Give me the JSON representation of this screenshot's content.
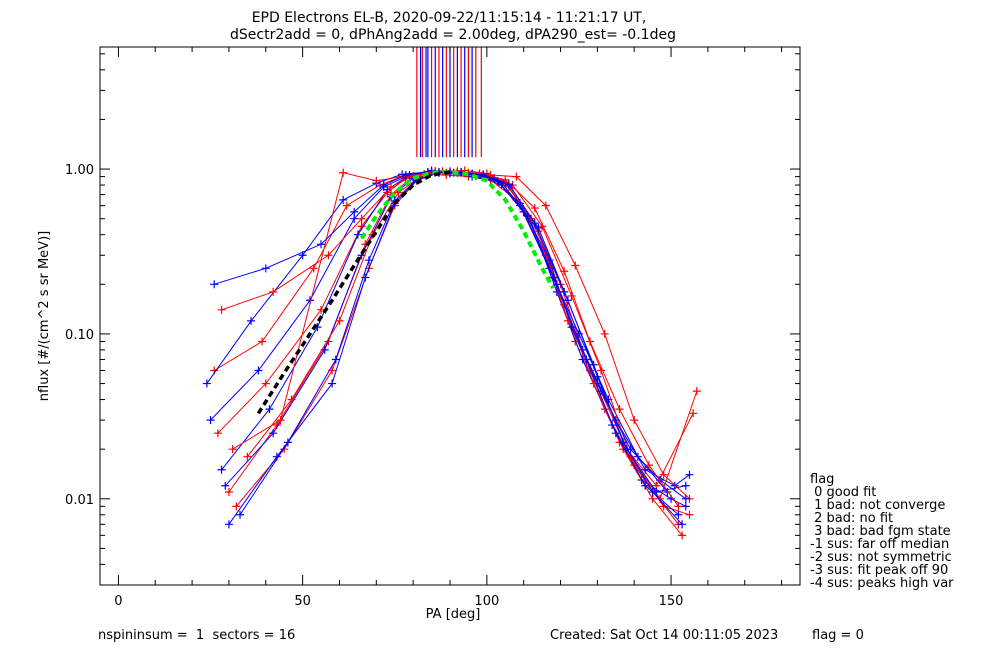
{
  "chart_data": {
    "type": "line",
    "title": "EPD Electrons EL-B, 2020-09-22/11:15:14 - 11:21:17 UT,",
    "subtitle": "dSectr2add = 0, dPhAng2add = 2.00deg, dPA290_est=  -0.1deg",
    "xlabel": "PA [deg]",
    "ylabel": "nflux [#/(cm^2 s sr MeV)]",
    "xlim": [
      -5,
      185
    ],
    "ylim": [
      0.003,
      5.5
    ],
    "yscale": "log",
    "xticks": [
      0,
      50,
      100,
      150
    ],
    "xtick_labels": [
      "0",
      "50",
      "100",
      "150"
    ],
    "yticks": [
      0.01,
      0.1,
      1.0
    ],
    "ytick_labels": [
      "0.01",
      "0.10",
      "1.00"
    ],
    "grid": false,
    "colors": {
      "series_a": "#ff0000",
      "series_b": "#0000ff",
      "fit": "#00ee00",
      "model": "#000000"
    },
    "series": [
      {
        "color": "series_a",
        "x": [
          27,
          40,
          55,
          66,
          73,
          78,
          84,
          90,
          96,
          103,
          110,
          118,
          124,
          132,
          140,
          148,
          155
        ],
        "y": [
          0.025,
          0.05,
          0.14,
          0.45,
          0.72,
          0.88,
          0.95,
          0.96,
          0.93,
          0.85,
          0.55,
          0.22,
          0.09,
          0.035,
          0.016,
          0.009,
          0.008
        ]
      },
      {
        "color": "series_b",
        "x": [
          25,
          38,
          52,
          64,
          72,
          78,
          85,
          91,
          97,
          104,
          112,
          119,
          126,
          134,
          142,
          150,
          154
        ],
        "y": [
          0.03,
          0.06,
          0.16,
          0.5,
          0.78,
          0.9,
          0.96,
          0.95,
          0.91,
          0.8,
          0.48,
          0.18,
          0.07,
          0.028,
          0.013,
          0.01,
          0.009
        ]
      },
      {
        "color": "series_a",
        "x": [
          30,
          43,
          57,
          67,
          74,
          80,
          86,
          92,
          98,
          105,
          112,
          120,
          128,
          136,
          144,
          152
        ],
        "y": [
          0.011,
          0.028,
          0.09,
          0.35,
          0.7,
          0.9,
          0.97,
          0.97,
          0.92,
          0.82,
          0.5,
          0.2,
          0.06,
          0.022,
          0.012,
          0.007
        ]
      },
      {
        "color": "series_b",
        "x": [
          28,
          41,
          54,
          65,
          73,
          79,
          85,
          90,
          96,
          102,
          109,
          117,
          125,
          133,
          141,
          149
        ],
        "y": [
          0.015,
          0.035,
          0.11,
          0.4,
          0.75,
          0.92,
          0.98,
          0.97,
          0.94,
          0.88,
          0.6,
          0.25,
          0.1,
          0.04,
          0.018,
          0.011
        ]
      },
      {
        "color": "series_a",
        "x": [
          26,
          39,
          53,
          62,
          71,
          77,
          83,
          89,
          95,
          101,
          108,
          116,
          122,
          130,
          138,
          146,
          156
        ],
        "y": [
          0.06,
          0.09,
          0.25,
          0.6,
          0.8,
          0.9,
          0.93,
          0.92,
          0.9,
          0.86,
          0.65,
          0.3,
          0.12,
          0.05,
          0.02,
          0.012,
          0.033
        ]
      },
      {
        "color": "series_b",
        "x": [
          24,
          36,
          50,
          61,
          70,
          77,
          84,
          90,
          96,
          103,
          110,
          118,
          126,
          135,
          143,
          151,
          155
        ],
        "y": [
          0.05,
          0.12,
          0.3,
          0.65,
          0.82,
          0.93,
          0.96,
          0.94,
          0.9,
          0.84,
          0.55,
          0.22,
          0.08,
          0.03,
          0.015,
          0.012,
          0.014
        ]
      },
      {
        "color": "series_a",
        "x": [
          32,
          45,
          58,
          68,
          75,
          81,
          87,
          93,
          99,
          106,
          114,
          121,
          129,
          137,
          145,
          153
        ],
        "y": [
          0.009,
          0.02,
          0.06,
          0.25,
          0.6,
          0.85,
          0.95,
          0.96,
          0.91,
          0.78,
          0.42,
          0.15,
          0.05,
          0.02,
          0.01,
          0.006
        ]
      },
      {
        "color": "series_b",
        "x": [
          29,
          42,
          56,
          66,
          74,
          80,
          86,
          92,
          98,
          104,
          111,
          119,
          127,
          135,
          143,
          152
        ],
        "y": [
          0.012,
          0.025,
          0.08,
          0.3,
          0.68,
          0.88,
          0.95,
          0.95,
          0.92,
          0.83,
          0.52,
          0.2,
          0.07,
          0.025,
          0.012,
          0.008
        ]
      },
      {
        "color": "series_a",
        "x": [
          35,
          47,
          60,
          69,
          76,
          82,
          88,
          94,
          100,
          107,
          115,
          123,
          131,
          139,
          147,
          157
        ],
        "y": [
          0.018,
          0.04,
          0.12,
          0.4,
          0.72,
          0.9,
          0.97,
          0.98,
          0.94,
          0.8,
          0.45,
          0.17,
          0.06,
          0.018,
          0.01,
          0.045
        ]
      },
      {
        "color": "series_b",
        "x": [
          33,
          46,
          59,
          68,
          75,
          81,
          87,
          93,
          99,
          106,
          113,
          121,
          129,
          137,
          145,
          153
        ],
        "y": [
          0.008,
          0.022,
          0.07,
          0.28,
          0.64,
          0.87,
          0.96,
          0.96,
          0.93,
          0.81,
          0.47,
          0.18,
          0.065,
          0.022,
          0.011,
          0.007
        ]
      },
      {
        "color": "series_a",
        "x": [
          31,
          44,
          61,
          70,
          77,
          83,
          89,
          95,
          101,
          108,
          116,
          124,
          132,
          140,
          148,
          155
        ],
        "y": [
          0.02,
          0.03,
          0.95,
          0.85,
          0.9,
          0.93,
          0.95,
          0.95,
          0.92,
          0.9,
          0.6,
          0.26,
          0.1,
          0.03,
          0.014,
          0.01
        ]
      },
      {
        "color": "series_b",
        "x": [
          26,
          40,
          55,
          64,
          72,
          78,
          84,
          90,
          96,
          102,
          109,
          117,
          123,
          131,
          139,
          147,
          154
        ],
        "y": [
          0.2,
          0.25,
          0.35,
          0.55,
          0.8,
          0.92,
          0.96,
          0.95,
          0.93,
          0.87,
          0.62,
          0.28,
          0.11,
          0.045,
          0.02,
          0.013,
          0.01
        ]
      },
      {
        "color": "series_a",
        "x": [
          28,
          42,
          57,
          66,
          74,
          80,
          86,
          92,
          98,
          105,
          113,
          121,
          128,
          136,
          144,
          152
        ],
        "y": [
          0.14,
          0.18,
          0.3,
          0.5,
          0.78,
          0.91,
          0.97,
          0.96,
          0.94,
          0.86,
          0.58,
          0.24,
          0.09,
          0.035,
          0.016,
          0.009
        ]
      },
      {
        "color": "series_b",
        "x": [
          30,
          43,
          58,
          67,
          75,
          81,
          87,
          93,
          99,
          106,
          114,
          122,
          130,
          138,
          146,
          154
        ],
        "y": [
          0.007,
          0.018,
          0.05,
          0.22,
          0.62,
          0.86,
          0.95,
          0.96,
          0.92,
          0.8,
          0.44,
          0.16,
          0.055,
          0.02,
          0.011,
          0.012
        ]
      }
    ],
    "fit_curve": {
      "color": "fit",
      "x": [
        66,
        70,
        75,
        80,
        85,
        90,
        95,
        100,
        105,
        110,
        115,
        118
      ],
      "y": [
        0.38,
        0.52,
        0.72,
        0.88,
        0.95,
        0.96,
        0.93,
        0.85,
        0.65,
        0.42,
        0.25,
        0.19
      ]
    },
    "model_curve": {
      "color": "model",
      "x": [
        38,
        45,
        52,
        58,
        64,
        70,
        75,
        80,
        85,
        90
      ],
      "y": [
        0.033,
        0.058,
        0.1,
        0.16,
        0.26,
        0.42,
        0.62,
        0.8,
        0.92,
        0.96
      ]
    },
    "vertical_lines": [
      {
        "color": "series_a",
        "x": [
          81,
          82.5,
          85,
          87,
          89,
          91,
          93,
          95,
          97,
          98.5
        ]
      },
      {
        "color": "series_b",
        "x": [
          82,
          83.5,
          84,
          86,
          88,
          90,
          92,
          94,
          96
        ]
      }
    ],
    "legend": {
      "placement": "right",
      "title": "flag",
      "items": [
        " 0 good fit",
        " 1 bad: not converge",
        " 2 bad: no fit",
        " 3 bad: bad fgm state",
        "-1 sus: far off median",
        "-2 sus: not symmetric",
        "-3 sus: fit peak off 90",
        "-4 sus: peaks high var"
      ]
    },
    "footer_left": "nspininsum =  1  sectors = 16",
    "footer_created": "Created: Sat Oct 14 00:11:05 2023",
    "footer_flag": "flag = 0"
  }
}
